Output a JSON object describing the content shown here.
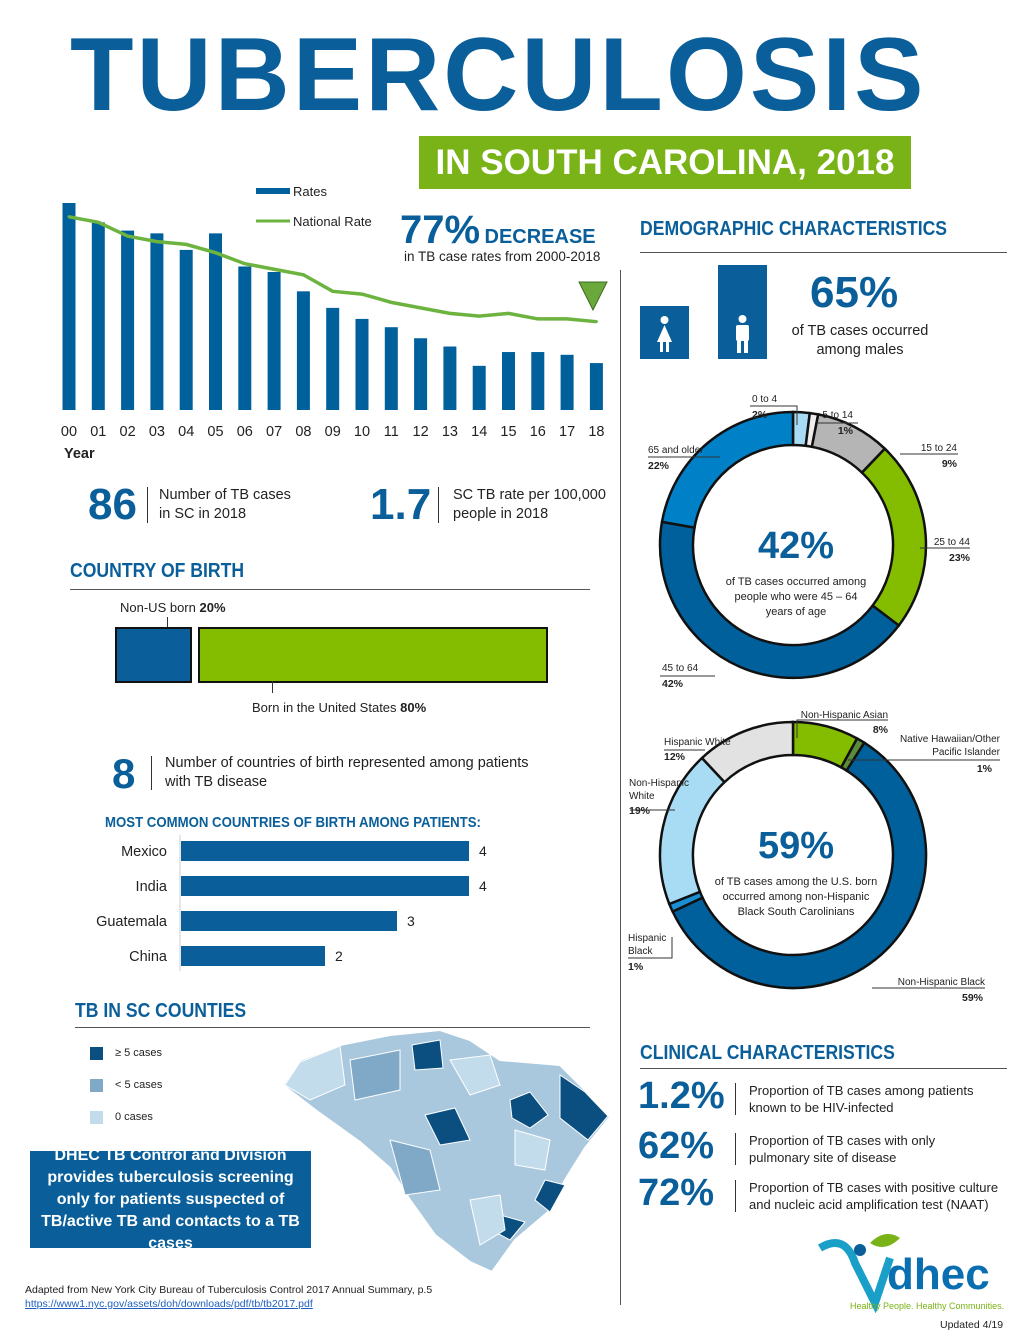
{
  "header": {
    "title": "TUBERCULOSIS",
    "subtitle": "IN SOUTH CAROLINA, 2018"
  },
  "colors": {
    "brand_blue": "#0a5f9a",
    "green": "#7ab317",
    "bar": "#00609c",
    "line": "#6cb33f"
  },
  "trend": {
    "legend_rates": "Rates",
    "legend_national": "National Rate",
    "xlabel": "Year",
    "decrease_value": "77%",
    "decrease_word": "DECREASE",
    "decrease_text": "in TB case rates from 2000-2018",
    "down_arrow_icon": "triangle-down"
  },
  "stats": {
    "cases_value": "86",
    "cases_text_1": "Number of TB cases",
    "cases_text_2": "in SC in 2018",
    "rate_value": "1.7",
    "rate_text_1": "SC TB rate per 100,000",
    "rate_text_2": "people in 2018"
  },
  "country_of_birth": {
    "heading": "COUNTRY OF BIRTH",
    "non_us_label": "Non-US born",
    "non_us_pct": "20%",
    "us_label": "Born in the United States",
    "us_pct": "80%",
    "countries_value": "8",
    "countries_text_1": "Number of countries of birth represented among patients",
    "countries_text_2": "with TB disease",
    "common_heading": "MOST COMMON COUNTRIES OF BIRTH AMONG PATIENTS:"
  },
  "counties": {
    "heading": "TB IN SC COUNTIES",
    "legend": [
      {
        "label": "≥ 5 cases",
        "color": "#0a4f80"
      },
      {
        "label": "< 5 cases",
        "color": "#7fa9c6"
      },
      {
        "label": "0 cases",
        "color": "#c3dcec"
      }
    ]
  },
  "dhec_box": {
    "text": "DHEC TB Control and Division provides tuberculosis screening only for patients suspected of TB/active TB and contacts to a TB cases"
  },
  "footer": {
    "source": "Adapted from New York City Bureau of Tuberculosis Control 2017 Annual Summary, p.5",
    "link": "https://www1.nyc.gov/assets/doh/downloads/pdf/tb/tb2017.pdf",
    "updated": "Updated 4/19",
    "logo_text": "dhec",
    "logo_tagline": "Healthy People. Healthy Communities."
  },
  "demographic": {
    "heading": "DEMOGRAPHIC CHARACTERISTICS",
    "male_pct": "65%",
    "male_text_1": "of TB cases occurred",
    "male_text_2": "among males",
    "female_icon": "female-icon",
    "male_icon": "male-icon",
    "age_center_value": "42%",
    "age_center_text": [
      "of TB cases occurred among",
      "people who were 45 – 64",
      "years of age"
    ],
    "race_center_value": "59%",
    "race_center_text": [
      "of TB cases among the U.S. born",
      "occurred among non-Hispanic",
      "Black South Carolinians"
    ]
  },
  "clinical": {
    "heading": "CLINICAL CHARACTERISTICS",
    "items": [
      {
        "value": "1.2%",
        "text_1": "Proportion of TB cases among patients",
        "text_2": "known to be HIV-infected"
      },
      {
        "value": "62%",
        "text_1": "Proportion of TB cases with only",
        "text_2": "pulmonary site of disease"
      },
      {
        "value": "72%",
        "text_1": "Proportion of TB cases with positive culture",
        "text_2": "and nucleic acid amplification test (NAAT)"
      }
    ]
  },
  "chart_data": [
    {
      "type": "bar",
      "title": "",
      "xlabel": "Year",
      "categories": [
        "00",
        "01",
        "02",
        "03",
        "04",
        "05",
        "06",
        "07",
        "08",
        "09",
        "10",
        "11",
        "12",
        "13",
        "14",
        "15",
        "16",
        "17",
        "18"
      ],
      "series": [
        {
          "name": "Rates",
          "type": "bar",
          "values": [
            7.5,
            6.8,
            6.5,
            6.4,
            5.8,
            6.4,
            5.2,
            5.0,
            4.3,
            3.7,
            3.3,
            3.0,
            2.6,
            2.3,
            1.6,
            2.1,
            2.1,
            2.0,
            1.7
          ]
        },
        {
          "name": "National Rate",
          "type": "line",
          "values": [
            7.0,
            6.8,
            6.3,
            6.1,
            6.0,
            5.7,
            5.3,
            5.1,
            4.9,
            4.3,
            4.2,
            3.9,
            3.7,
            3.5,
            3.4,
            3.5,
            3.3,
            3.3,
            3.2
          ]
        }
      ],
      "legend": "top-right",
      "grid": false
    },
    {
      "type": "bar",
      "orientation": "horizontal",
      "title": "MOST COMMON COUNTRIES OF BIRTH AMONG PATIENTS:",
      "categories": [
        "Mexico",
        "India",
        "Guatemala",
        "China"
      ],
      "values": [
        4,
        4,
        3,
        2
      ]
    },
    {
      "type": "pie",
      "donut": true,
      "labels": [
        "0 to 4",
        "5 to 14",
        "15 to 24",
        "25 to 44",
        "45 to 64",
        "65 and older"
      ],
      "values": [
        2,
        1,
        9,
        23,
        42,
        22
      ],
      "colors": [
        "#a8dcf5",
        "#eeeeee",
        "#b5b5b5",
        "#84bd00",
        "#00609c",
        "#0080c6"
      ]
    },
    {
      "type": "pie",
      "donut": true,
      "labels": [
        "Non-Hispanic Asian",
        "Native Hawaiian/Other Pacific Islander",
        "Non-Hispanic Black",
        "Hispanic Black",
        "Non-Hispanic White",
        "Hispanic White"
      ],
      "values": [
        8,
        1,
        59,
        1,
        19,
        12
      ],
      "colors": [
        "#84bd00",
        "#5b8c3a",
        "#00609c",
        "#1a8fd6",
        "#a8dcf5",
        "#e2e2e2"
      ]
    }
  ]
}
